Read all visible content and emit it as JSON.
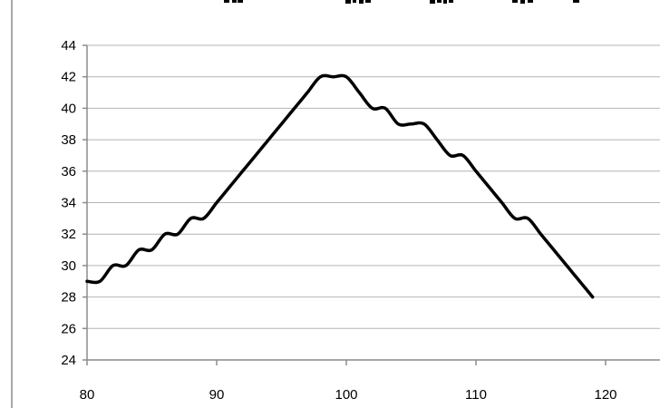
{
  "chart_data": {
    "type": "line",
    "title": "",
    "xlabel": "",
    "ylabel": "",
    "xlim": [
      80,
      120
    ],
    "ylim": [
      24,
      44
    ],
    "x_ticks": [
      80,
      90,
      100,
      110,
      120
    ],
    "y_ticks": [
      24,
      26,
      28,
      30,
      32,
      34,
      36,
      38,
      40,
      42,
      44
    ],
    "grid": "horizontal",
    "legend": "none",
    "series": [
      {
        "color": "#000000",
        "x": [
          80,
          81,
          82,
          83,
          84,
          85,
          86,
          87,
          88,
          89,
          90,
          91,
          92,
          93,
          94,
          95,
          96,
          97,
          98,
          99,
          100,
          101,
          102,
          103,
          104,
          105,
          106,
          107,
          108,
          109,
          110,
          111,
          112,
          113,
          114,
          115,
          116,
          117,
          118,
          119
        ],
        "y": [
          29,
          29,
          30,
          30,
          31,
          31,
          32,
          32,
          33,
          33,
          34,
          35,
          36,
          37,
          38,
          39,
          40,
          41,
          42,
          42,
          42,
          41,
          40,
          40,
          39,
          39,
          39,
          38,
          37,
          37,
          36,
          35,
          34,
          33,
          33,
          32,
          31,
          30,
          29,
          28
        ]
      }
    ]
  }
}
